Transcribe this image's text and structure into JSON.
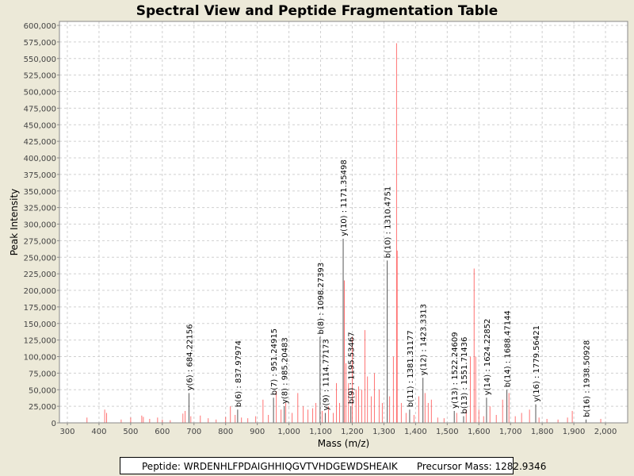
{
  "chart_data": {
    "type": "bar",
    "title": "Spectral View and Peptide Fragmentation Table",
    "xlabel": "Mass (m/z)",
    "ylabel": "Peak Intensity",
    "xlim": [
      275,
      2070
    ],
    "ylim": [
      0,
      600000
    ],
    "xticks": [
      300,
      400,
      500,
      600,
      700,
      800,
      900,
      1000,
      1100,
      1200,
      1300,
      1400,
      1500,
      1600,
      1700,
      1800,
      1900,
      2000
    ],
    "xtick_labels": [
      "300",
      "400",
      "500",
      "600",
      "700",
      "800",
      "900",
      "1,000",
      "1,100",
      "1,200",
      "1,300",
      "1,400",
      "1,500",
      "1,600",
      "1,700",
      "1,800",
      "1,900",
      "2,000"
    ],
    "yticks": [
      0,
      25000,
      50000,
      75000,
      100000,
      125000,
      150000,
      175000,
      200000,
      225000,
      250000,
      275000,
      300000,
      325000,
      350000,
      375000,
      400000,
      425000,
      450000,
      475000,
      500000,
      525000,
      550000,
      575000,
      600000
    ],
    "ytick_labels": [
      "0",
      "25,000",
      "50,000",
      "75,000",
      "100,000",
      "125,000",
      "150,000",
      "175,000",
      "200,000",
      "225,000",
      "250,000",
      "275,000",
      "300,000",
      "325,000",
      "350,000",
      "375,000",
      "400,000",
      "425,000",
      "450,000",
      "475,000",
      "500,000",
      "525,000",
      "550,000",
      "575,000",
      "600,000"
    ],
    "grid": true,
    "peak_color": "#ff4444",
    "annotations": [
      {
        "label": "y(6) : 684.22156",
        "mass": 684.22,
        "intensity": 45000
      },
      {
        "label": "b(6) : 837.97974",
        "mass": 837.98,
        "intensity": 20000
      },
      {
        "label": "b(7) : 951.24915",
        "mass": 951.25,
        "intensity": 38000
      },
      {
        "label": "y(8) : 985.20483",
        "mass": 985.2,
        "intensity": 25000
      },
      {
        "label": "b(8) : 1098.27393",
        "mass": 1098.27,
        "intensity": 130000
      },
      {
        "label": "y(9) : 1114.77173",
        "mass": 1114.77,
        "intensity": 15000
      },
      {
        "label": "y(10) : 1171.35498",
        "mass": 1171.35,
        "intensity": 278000
      },
      {
        "label": "b(9) : 1195.53467",
        "mass": 1195.53,
        "intensity": 25000
      },
      {
        "label": "b(10) : 1310.4751",
        "mass": 1310.48,
        "intensity": 245000
      },
      {
        "label": "b(11) : 1381.31177",
        "mass": 1381.31,
        "intensity": 20000
      },
      {
        "label": "y(12) : 1423.3313",
        "mass": 1423.33,
        "intensity": 68000
      },
      {
        "label": "y(13) : 1522.24609",
        "mass": 1522.25,
        "intensity": 18000
      },
      {
        "label": "b(13) : 1551.71436",
        "mass": 1551.71,
        "intensity": 10000
      },
      {
        "label": "y(14) : 1624.22852",
        "mass": 1624.23,
        "intensity": 38000
      },
      {
        "label": "b(14) : 1688.47144",
        "mass": 1688.47,
        "intensity": 50000
      },
      {
        "label": "y(16) : 1779.56421",
        "mass": 1779.56,
        "intensity": 28000
      },
      {
        "label": "b(16) : 1938.50928",
        "mass": 1938.51,
        "intensity": 5000
      }
    ],
    "peaks": [
      [
        362,
        8000
      ],
      [
        418,
        20000
      ],
      [
        424,
        15000
      ],
      [
        470,
        5000
      ],
      [
        500,
        8000
      ],
      [
        535,
        11000
      ],
      [
        540,
        9000
      ],
      [
        560,
        6000
      ],
      [
        585,
        8000
      ],
      [
        600,
        5000
      ],
      [
        625,
        4000
      ],
      [
        665,
        14000
      ],
      [
        672,
        18000
      ],
      [
        690,
        10000
      ],
      [
        720,
        11000
      ],
      [
        745,
        7000
      ],
      [
        770,
        5000
      ],
      [
        800,
        9000
      ],
      [
        815,
        25000
      ],
      [
        830,
        12000
      ],
      [
        850,
        8000
      ],
      [
        870,
        7000
      ],
      [
        895,
        10000
      ],
      [
        918,
        35000
      ],
      [
        935,
        12000
      ],
      [
        960,
        48000
      ],
      [
        975,
        20000
      ],
      [
        990,
        30000
      ],
      [
        1010,
        15000
      ],
      [
        1028,
        45000
      ],
      [
        1045,
        25000
      ],
      [
        1060,
        20000
      ],
      [
        1075,
        22000
      ],
      [
        1085,
        30000
      ],
      [
        1105,
        18000
      ],
      [
        1125,
        25000
      ],
      [
        1140,
        15000
      ],
      [
        1150,
        60000
      ],
      [
        1160,
        30000
      ],
      [
        1175,
        215000
      ],
      [
        1180,
        90000
      ],
      [
        1188,
        60000
      ],
      [
        1200,
        130000
      ],
      [
        1212,
        50000
      ],
      [
        1220,
        55000
      ],
      [
        1230,
        50000
      ],
      [
        1240,
        140000
      ],
      [
        1248,
        70000
      ],
      [
        1260,
        40000
      ],
      [
        1270,
        75000
      ],
      [
        1285,
        50000
      ],
      [
        1295,
        30000
      ],
      [
        1318,
        40000
      ],
      [
        1330,
        100000
      ],
      [
        1340,
        573000
      ],
      [
        1342,
        260000
      ],
      [
        1355,
        30000
      ],
      [
        1370,
        15000
      ],
      [
        1395,
        12000
      ],
      [
        1410,
        40000
      ],
      [
        1430,
        45000
      ],
      [
        1440,
        30000
      ],
      [
        1450,
        35000
      ],
      [
        1470,
        8000
      ],
      [
        1490,
        7000
      ],
      [
        1530,
        15000
      ],
      [
        1560,
        20000
      ],
      [
        1573,
        100000
      ],
      [
        1585,
        233000
      ],
      [
        1590,
        100000
      ],
      [
        1600,
        20000
      ],
      [
        1615,
        10000
      ],
      [
        1635,
        25000
      ],
      [
        1655,
        12000
      ],
      [
        1675,
        35000
      ],
      [
        1695,
        45000
      ],
      [
        1715,
        10000
      ],
      [
        1735,
        15000
      ],
      [
        1760,
        20000
      ],
      [
        1790,
        8000
      ],
      [
        1815,
        6000
      ],
      [
        1850,
        5000
      ],
      [
        1880,
        8000
      ],
      [
        1895,
        18000
      ],
      [
        1985,
        6000
      ]
    ]
  },
  "footer": {
    "peptide": "Peptide: WRDENHLFPDAIGHHIQGVTVHDGEWDSHEAIK",
    "precursor": "Precursor Mass: 1282.9346"
  }
}
